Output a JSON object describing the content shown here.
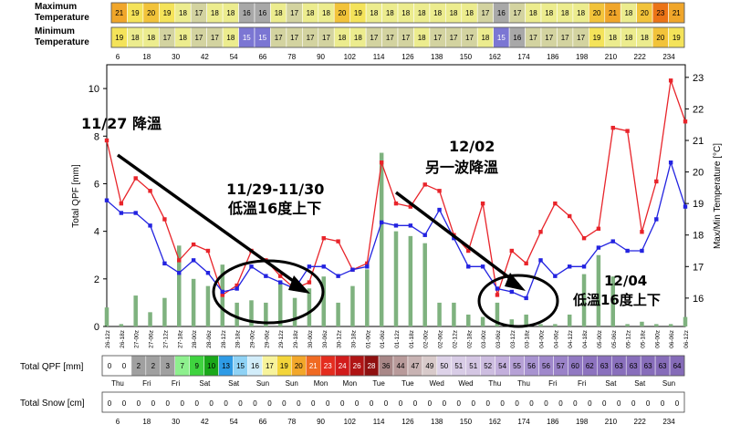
{
  "rows": {
    "max_label_1": "Maximum",
    "max_label_2": "Temperature",
    "min_label_1": "Minimum",
    "min_label_2": "Temperature",
    "qpf_label": "Total QPF [mm]",
    "snow_label": "Total Snow [cm]"
  },
  "max_temp_cells": [
    21,
    19,
    20,
    19,
    18,
    17,
    18,
    18,
    16,
    16,
    18,
    17,
    18,
    18,
    20,
    19,
    18,
    18,
    18,
    18,
    18,
    18,
    18,
    17,
    16,
    17,
    18,
    18,
    18,
    18,
    20,
    21,
    18,
    20,
    23,
    21
  ],
  "min_temp_cells": [
    19,
    18,
    18,
    17,
    18,
    17,
    17,
    18,
    15,
    15,
    17,
    17,
    17,
    17,
    18,
    18,
    17,
    17,
    17,
    18,
    17,
    17,
    17,
    18,
    15,
    16,
    17,
    17,
    17,
    17,
    19,
    18,
    18,
    18,
    20,
    19
  ],
  "qpf_cells": [
    "0",
    "0",
    "2",
    "2",
    "3",
    "7",
    "9",
    "10",
    "13",
    "15",
    "16",
    "17",
    "19",
    "20",
    "21",
    "23",
    "24",
    "26",
    "28",
    "36",
    "44",
    "47",
    "49",
    "50",
    "51",
    "51",
    "52",
    "54",
    "55",
    "56",
    "56",
    "57",
    "60",
    "62",
    "63",
    "63",
    "63",
    "63",
    "63",
    "64"
  ],
  "snow_cells": [
    "0",
    "0",
    "0",
    "0",
    "0",
    "0",
    "0",
    "0",
    "0",
    "0",
    "0",
    "0",
    "0",
    "0",
    "0",
    "0",
    "0",
    "0",
    "0",
    "0",
    "0",
    "0",
    "0",
    "0",
    "0",
    "0",
    "0",
    "0",
    "0",
    "0",
    "0",
    "0",
    "0",
    "0",
    "0",
    "0",
    "0",
    "0",
    "0",
    "0"
  ],
  "hour_ticks": [
    "6",
    "18",
    "30",
    "42",
    "54",
    "66",
    "78",
    "90",
    "102",
    "114",
    "126",
    "138",
    "150",
    "162",
    "174",
    "186",
    "198",
    "210",
    "222",
    "234"
  ],
  "day_labels": [
    "Thu",
    "Fri",
    "Fri",
    "Sat",
    "Sat",
    "Sun",
    "Sun",
    "Mon",
    "Mon",
    "Tue",
    "Tue",
    "Wed",
    "Wed",
    "Thu",
    "Thu",
    "Fri",
    "Fri",
    "Sat",
    "Sat",
    "Sun"
  ],
  "time_labels": [
    "26-12z",
    "26-18z",
    "27-00z",
    "27-06z",
    "27-12z",
    "27-18z",
    "28-00z",
    "28-06z",
    "28-12z",
    "28-18z",
    "29-00z",
    "29-06z",
    "29-12z",
    "29-18z",
    "30-00z",
    "30-06z",
    "30-12z",
    "30-18z",
    "01-00z",
    "01-06z",
    "01-12z",
    "01-18z",
    "02-00z",
    "02-06z",
    "02-12z",
    "02-18z",
    "03-00z",
    "03-06z",
    "03-12z",
    "03-18z",
    "04-00z",
    "04-06z",
    "04-12z",
    "04-18z",
    "05-00z",
    "05-06z",
    "05-12z",
    "05-18z",
    "06-00z",
    "06-06z",
    "06-12z"
  ],
  "annotations": {
    "a1": "11/27 降溫",
    "a2_1": "11/29-11/30",
    "a2_2": "低溫16度上下",
    "a3_1": "12/02",
    "a3_2": "另一波降溫",
    "a4_1": "12/04",
    "a4_2": "低溫16度上下"
  },
  "colors": {
    "max_line": "#e8242a",
    "min_line": "#2323e0",
    "bar": "#7fb27f"
  },
  "chart_data": {
    "type": "line",
    "xlabel": "",
    "ylabel": "Total QPF [mm]",
    "y2label": "Max/Min Temperature [°C]",
    "ylim": [
      0,
      11
    ],
    "y2lim": [
      15.1,
      23.4
    ],
    "yticks": [
      "0",
      "2",
      "4",
      "6",
      "8",
      "10"
    ],
    "y2ticks": [
      "16",
      "17",
      "18",
      "19",
      "20",
      "21",
      "22",
      "23"
    ],
    "x": [
      "26-12z",
      "26-18z",
      "27-00z",
      "27-06z",
      "27-12z",
      "27-18z",
      "28-00z",
      "28-06z",
      "28-12z",
      "28-18z",
      "29-00z",
      "29-06z",
      "29-12z",
      "29-18z",
      "30-00z",
      "30-06z",
      "30-12z",
      "30-18z",
      "01-00z",
      "01-06z",
      "01-12z",
      "01-18z",
      "02-00z",
      "02-06z",
      "02-12z",
      "02-18z",
      "03-00z",
      "03-06z",
      "03-12z",
      "03-18z",
      "04-00z",
      "04-06z",
      "04-12z",
      "04-18z",
      "05-00z",
      "05-06z",
      "05-12z",
      "05-18z",
      "06-00z",
      "06-06z",
      "06-12z"
    ],
    "series": [
      {
        "values": [
          0.8,
          0.1,
          1.3,
          0.6,
          1.2,
          3.4,
          2.0,
          1.7,
          2.6,
          1.0,
          1.1,
          1.0,
          1.9,
          1.2,
          1.6,
          2.1,
          1.0,
          1.7,
          2.4,
          7.3,
          4.0,
          3.8,
          3.5,
          1.0,
          1.0,
          0.5,
          0.4,
          1.0,
          0.3,
          0.5,
          0.1,
          0.1,
          0.5,
          2.2,
          3.0,
          2.1,
          0.1,
          0.2,
          0.1,
          0.1,
          0.4
        ]
      },
      {
        "values": [
          21.0,
          19.0,
          19.8,
          19.4,
          18.5,
          17.2,
          17.7,
          17.5,
          16.1,
          16.4,
          17.5,
          17.2,
          16.7,
          16.3,
          16.5,
          17.9,
          17.8,
          16.9,
          17.1,
          20.3,
          19.0,
          18.9,
          19.6,
          19.4,
          18.0,
          17.5,
          19.0,
          16.1,
          17.5,
          17.1,
          18.1,
          19.0,
          18.6,
          17.9,
          18.2,
          21.4,
          21.3,
          18.1,
          19.7,
          22.9,
          21.6
        ]
      },
      {
        "values": [
          19.1,
          18.7,
          18.7,
          18.3,
          17.1,
          16.8,
          17.2,
          16.8,
          16.2,
          16.3,
          17.0,
          16.7,
          16.5,
          16.3,
          17.0,
          17.0,
          16.7,
          16.9,
          17.0,
          18.4,
          18.3,
          18.3,
          18.0,
          18.8,
          17.9,
          17.0,
          17.0,
          16.3,
          16.2,
          16.0,
          17.2,
          16.7,
          17.0,
          17.0,
          17.6,
          17.8,
          17.5,
          17.5,
          18.5,
          20.3,
          18.9
        ]
      }
    ]
  }
}
